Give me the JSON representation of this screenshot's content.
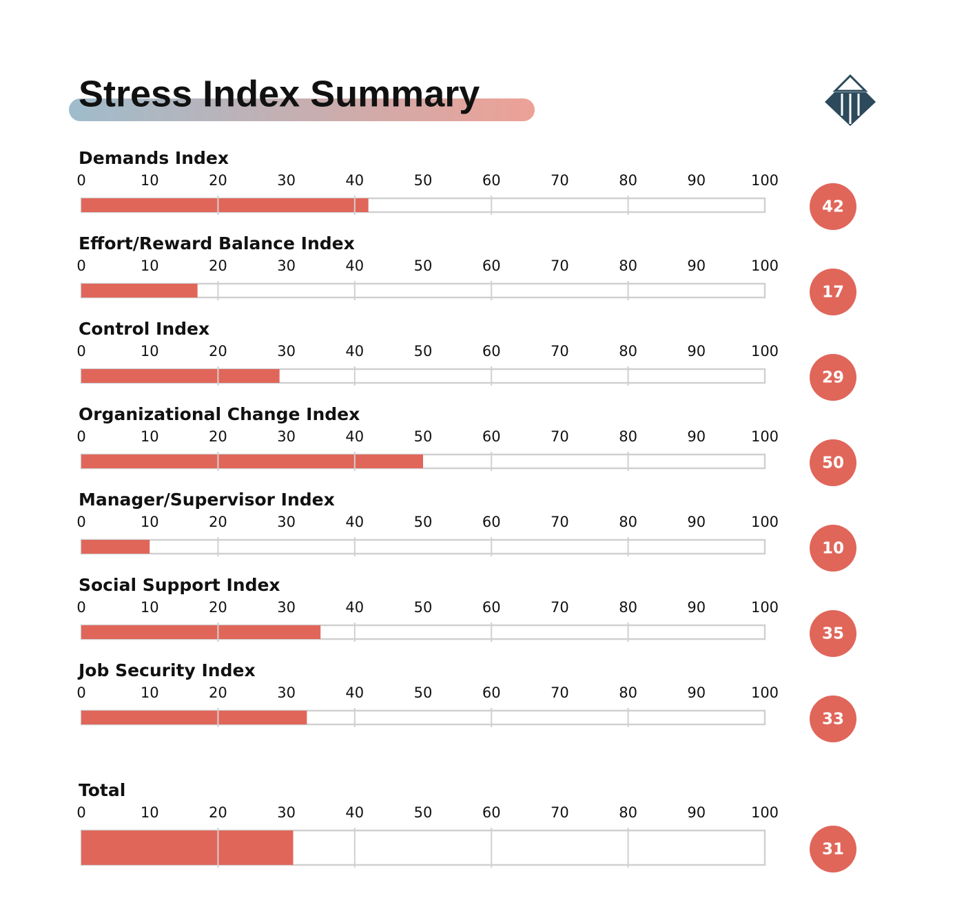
{
  "title": "Stress Index Summary",
  "chart_data": [
    {
      "type": "bar",
      "title": "Demands Index",
      "values": [
        42
      ],
      "color": "#e0665a",
      "xlim": [
        0,
        100
      ],
      "xticks": [
        0,
        10,
        20,
        30,
        40,
        50,
        60,
        70,
        80,
        90,
        100
      ],
      "grid": [
        20,
        40,
        60,
        80
      ]
    },
    {
      "type": "bar",
      "title": "Effort/Reward Balance Index",
      "values": [
        17
      ],
      "color": "#e0665a",
      "xlim": [
        0,
        100
      ],
      "xticks": [
        0,
        10,
        20,
        30,
        40,
        50,
        60,
        70,
        80,
        90,
        100
      ],
      "grid": [
        20,
        40,
        60,
        80
      ]
    },
    {
      "type": "bar",
      "title": "Control Index",
      "values": [
        29
      ],
      "color": "#e0665a",
      "xlim": [
        0,
        100
      ],
      "xticks": [
        0,
        10,
        20,
        30,
        40,
        50,
        60,
        70,
        80,
        90,
        100
      ],
      "grid": [
        20,
        40,
        60,
        80
      ]
    },
    {
      "type": "bar",
      "title": "Organizational Change Index",
      "values": [
        50
      ],
      "color": "#e0665a",
      "xlim": [
        0,
        100
      ],
      "xticks": [
        0,
        10,
        20,
        30,
        40,
        50,
        60,
        70,
        80,
        90,
        100
      ],
      "grid": [
        20,
        40,
        60,
        80
      ]
    },
    {
      "type": "bar",
      "title": "Manager/Supervisor Index",
      "values": [
        10
      ],
      "color": "#e0665a",
      "xlim": [
        0,
        100
      ],
      "xticks": [
        0,
        10,
        20,
        30,
        40,
        50,
        60,
        70,
        80,
        90,
        100
      ],
      "grid": [
        20,
        40,
        60,
        80
      ]
    },
    {
      "type": "bar",
      "title": "Social Support Index",
      "values": [
        35
      ],
      "color": "#e0665a",
      "xlim": [
        0,
        100
      ],
      "xticks": [
        0,
        10,
        20,
        30,
        40,
        50,
        60,
        70,
        80,
        90,
        100
      ],
      "grid": [
        20,
        40,
        60,
        80
      ]
    },
    {
      "type": "bar",
      "title": "Job Security Index",
      "values": [
        33
      ],
      "color": "#e0665a",
      "xlim": [
        0,
        100
      ],
      "xticks": [
        0,
        10,
        20,
        30,
        40,
        50,
        60,
        70,
        80,
        90,
        100
      ],
      "grid": [
        20,
        40,
        60,
        80
      ]
    },
    {
      "type": "bar",
      "title": "Total",
      "values": [
        31
      ],
      "color": "#e0665a",
      "xlim": [
        0,
        100
      ],
      "xticks": [
        0,
        10,
        20,
        30,
        40,
        50,
        60,
        70,
        80,
        90,
        100
      ],
      "grid": [
        20,
        40,
        60,
        80
      ]
    }
  ]
}
